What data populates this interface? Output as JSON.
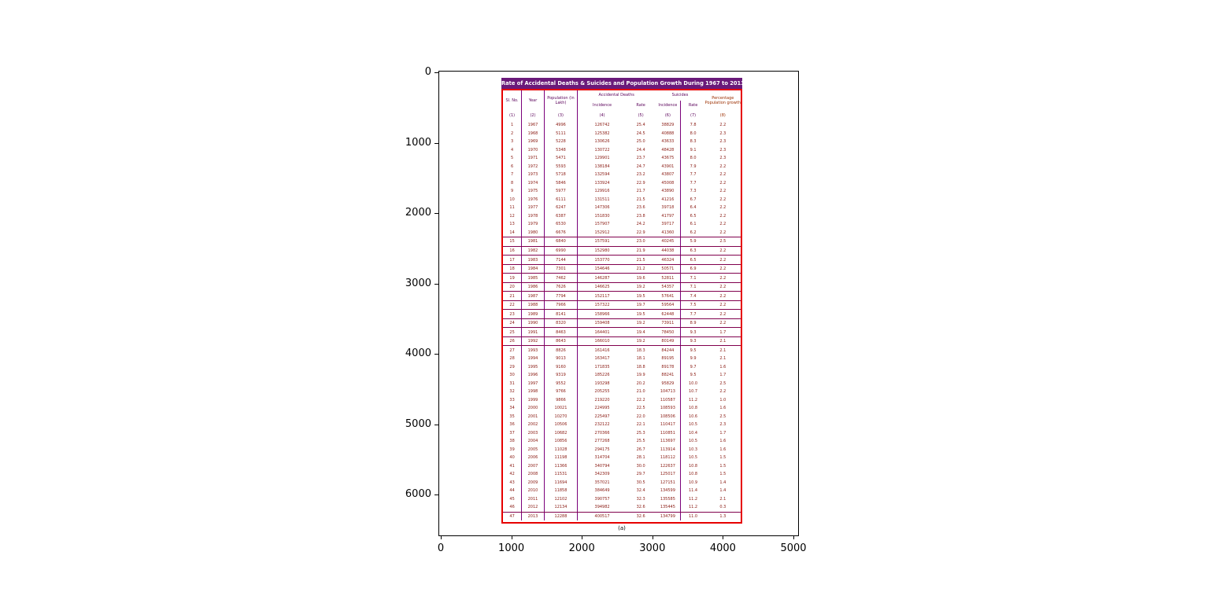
{
  "figure": {
    "x_tick_labels": [
      "0",
      "1000",
      "2000",
      "3000",
      "4000",
      "5000"
    ],
    "y_tick_labels": [
      "0",
      "1000",
      "2000",
      "3000",
      "4000",
      "5000",
      "6000"
    ],
    "caption": "(a)"
  },
  "colors": {
    "title_bar": "#6a1a7a",
    "outer_border_red": "#e60000",
    "column_rule_purple": "#7a007a",
    "row_rule_maroon": "#80004d",
    "header_text_purple": "#5a005a",
    "data_text_maroon": "#8a1a12",
    "growth_header_red": "#9c2f00"
  },
  "chart_data": {
    "type": "table",
    "title": "Rate of Accidental Deaths & Suicides and Population Growth During 1967 to 2013",
    "header": {
      "sl_no": "Sl. No.",
      "year": "Year",
      "population": "Population (in Lakh)",
      "group_accidental": "Accidental Deaths",
      "group_suicides": "Suicides",
      "incidence": "Incidence",
      "rate": "Rate",
      "growth": "Percentage Population growth",
      "col_numbers": [
        "(1)",
        "(2)",
        "(3)",
        "(4)",
        "(5)",
        "(6)",
        "(7)",
        "(8)"
      ]
    },
    "ruled_rows": {
      "first_sl": 15,
      "last_sl": 26,
      "note": "rows 1981-1992 drawn with horizontal rules; last row also ruled above"
    },
    "rows": [
      [
        "1",
        "1967",
        "4996",
        "126742",
        "25.4",
        "38829",
        "7.8",
        "2.2"
      ],
      [
        "2",
        "1968",
        "5111",
        "125382",
        "24.5",
        "40888",
        "8.0",
        "2.3"
      ],
      [
        "3",
        "1969",
        "5228",
        "130626",
        "25.0",
        "43633",
        "8.3",
        "2.3"
      ],
      [
        "4",
        "1970",
        "5348",
        "130722",
        "24.4",
        "48428",
        "9.1",
        "2.3"
      ],
      [
        "5",
        "1971",
        "5471",
        "129901",
        "23.7",
        "43675",
        "8.0",
        "2.3"
      ],
      [
        "6",
        "1972",
        "5593",
        "138184",
        "24.7",
        "43901",
        "7.9",
        "2.2"
      ],
      [
        "7",
        "1973",
        "5718",
        "132594",
        "23.2",
        "43807",
        "7.7",
        "2.2"
      ],
      [
        "8",
        "1974",
        "5846",
        "133924",
        "22.9",
        "45008",
        "7.7",
        "2.2"
      ],
      [
        "9",
        "1975",
        "5977",
        "129916",
        "21.7",
        "43890",
        "7.3",
        "2.2"
      ],
      [
        "10",
        "1976",
        "6111",
        "131511",
        "21.5",
        "41216",
        "6.7",
        "2.2"
      ],
      [
        "11",
        "1977",
        "6247",
        "147306",
        "23.6",
        "39718",
        "6.4",
        "2.2"
      ],
      [
        "12",
        "1978",
        "6387",
        "151830",
        "23.8",
        "41797",
        "6.5",
        "2.2"
      ],
      [
        "13",
        "1979",
        "6530",
        "157907",
        "24.2",
        "39717",
        "6.1",
        "2.2"
      ],
      [
        "14",
        "1980",
        "6676",
        "152912",
        "22.9",
        "41360",
        "6.2",
        "2.2"
      ],
      [
        "15",
        "1981",
        "6840",
        "157591",
        "23.0",
        "40245",
        "5.9",
        "2.5"
      ],
      [
        "16",
        "1982",
        "6990",
        "152980",
        "21.9",
        "44038",
        "6.3",
        "2.2"
      ],
      [
        "17",
        "1983",
        "7144",
        "153770",
        "21.5",
        "46324",
        "6.5",
        "2.2"
      ],
      [
        "18",
        "1984",
        "7301",
        "154646",
        "21.2",
        "50571",
        "6.9",
        "2.2"
      ],
      [
        "19",
        "1985",
        "7462",
        "146287",
        "19.6",
        "52811",
        "7.1",
        "2.2"
      ],
      [
        "20",
        "1986",
        "7626",
        "146625",
        "19.2",
        "54357",
        "7.1",
        "2.2"
      ],
      [
        "21",
        "1987",
        "7794",
        "152117",
        "19.5",
        "57641",
        "7.4",
        "2.2"
      ],
      [
        "22",
        "1988",
        "7966",
        "157322",
        "19.7",
        "59564",
        "7.5",
        "2.2"
      ],
      [
        "23",
        "1989",
        "8141",
        "158966",
        "19.5",
        "62448",
        "7.7",
        "2.2"
      ],
      [
        "24",
        "1990",
        "8320",
        "159408",
        "19.2",
        "73911",
        "8.9",
        "2.2"
      ],
      [
        "25",
        "1991",
        "8463",
        "164401",
        "19.4",
        "78450",
        "9.3",
        "1.7"
      ],
      [
        "26",
        "1992",
        "8643",
        "166010",
        "19.2",
        "80149",
        "9.3",
        "2.1"
      ],
      [
        "27",
        "1993",
        "8826",
        "161416",
        "18.3",
        "84244",
        "9.5",
        "2.1"
      ],
      [
        "28",
        "1994",
        "9013",
        "163417",
        "18.1",
        "89195",
        "9.9",
        "2.1"
      ],
      [
        "29",
        "1995",
        "9160",
        "171835",
        "18.8",
        "89178",
        "9.7",
        "1.6"
      ],
      [
        "30",
        "1996",
        "9319",
        "185226",
        "19.9",
        "88241",
        "9.5",
        "1.7"
      ],
      [
        "31",
        "1997",
        "9552",
        "193298",
        "20.2",
        "95829",
        "10.0",
        "2.5"
      ],
      [
        "32",
        "1998",
        "9766",
        "205255",
        "21.0",
        "104713",
        "10.7",
        "2.2"
      ],
      [
        "33",
        "1999",
        "9866",
        "219220",
        "22.2",
        "110587",
        "11.2",
        "1.0"
      ],
      [
        "34",
        "2000",
        "10021",
        "224995",
        "22.5",
        "108593",
        "10.8",
        "1.6"
      ],
      [
        "35",
        "2001",
        "10270",
        "225497",
        "22.0",
        "108506",
        "10.6",
        "2.5"
      ],
      [
        "36",
        "2002",
        "10506",
        "232122",
        "22.1",
        "110417",
        "10.5",
        "2.3"
      ],
      [
        "37",
        "2003",
        "10682",
        "270366",
        "25.3",
        "110851",
        "10.4",
        "1.7"
      ],
      [
        "38",
        "2004",
        "10856",
        "277268",
        "25.5",
        "113697",
        "10.5",
        "1.6"
      ],
      [
        "39",
        "2005",
        "11028",
        "294175",
        "26.7",
        "113914",
        "10.3",
        "1.6"
      ],
      [
        "40",
        "2006",
        "11198",
        "314704",
        "28.1",
        "118112",
        "10.5",
        "1.5"
      ],
      [
        "41",
        "2007",
        "11366",
        "340794",
        "30.0",
        "122637",
        "10.8",
        "1.5"
      ],
      [
        "42",
        "2008",
        "11531",
        "342309",
        "29.7",
        "125017",
        "10.8",
        "1.5"
      ],
      [
        "43",
        "2009",
        "11694",
        "357021",
        "30.5",
        "127151",
        "10.9",
        "1.4"
      ],
      [
        "44",
        "2010",
        "11858",
        "384649",
        "32.4",
        "134599",
        "11.4",
        "1.4"
      ],
      [
        "45",
        "2011",
        "12102",
        "390757",
        "32.3",
        "135585",
        "11.2",
        "2.1"
      ],
      [
        "46",
        "2012",
        "12134",
        "394982",
        "32.6",
        "135445",
        "11.2",
        "0.3"
      ],
      [
        "47",
        "2013",
        "12288",
        "400517",
        "32.6",
        "134799",
        "11.0",
        "1.3"
      ]
    ]
  }
}
